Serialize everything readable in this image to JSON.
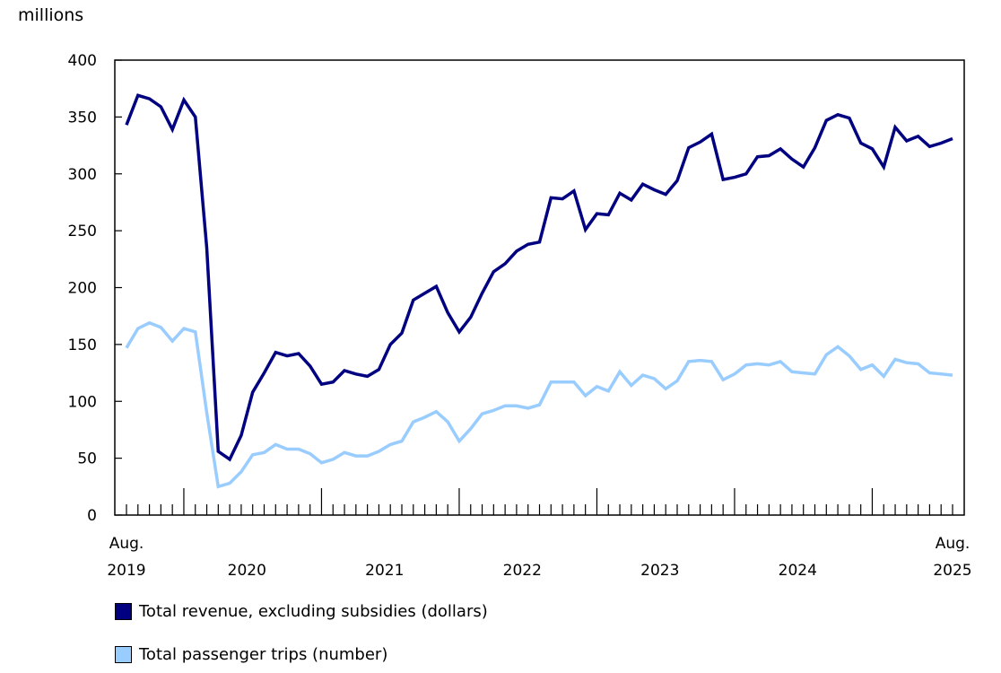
{
  "chart_data": {
    "type": "line",
    "unit_label": "millions",
    "ylim": [
      0,
      400
    ],
    "yticks": [
      0,
      50,
      100,
      150,
      200,
      250,
      300,
      350,
      400
    ],
    "x_start": "2019-08",
    "x_end": "2025-08",
    "x_labels": [
      {
        "top": "Aug.",
        "bottom": "2019",
        "month": "2019-08"
      },
      {
        "top": "",
        "bottom": "2020",
        "month": "2020-07"
      },
      {
        "top": "",
        "bottom": "2021",
        "month": "2021-07"
      },
      {
        "top": "",
        "bottom": "2022",
        "month": "2022-07"
      },
      {
        "top": "",
        "bottom": "2023",
        "month": "2023-07"
      },
      {
        "top": "",
        "bottom": "2024",
        "month": "2024-07"
      },
      {
        "top": "Aug.",
        "bottom": "2025",
        "month": "2025-08"
      }
    ],
    "grid": false,
    "legend_placement": "bottom",
    "series": [
      {
        "name": "Total revenue, excluding subsidies (dollars)",
        "color": "#000080",
        "values": [
          343,
          369,
          366,
          359,
          339,
          365,
          350,
          235,
          56,
          49,
          70,
          108,
          125,
          143,
          140,
          142,
          131,
          115,
          117,
          127,
          124,
          122,
          128,
          150,
          160,
          189,
          195,
          201,
          178,
          161,
          174,
          195,
          214,
          221,
          232,
          238,
          240,
          279,
          278,
          285,
          251,
          265,
          264,
          283,
          277,
          291,
          286,
          282,
          294,
          323,
          328,
          335,
          295,
          297,
          300,
          315,
          316,
          322,
          313,
          306,
          323,
          347,
          352,
          349,
          327,
          322,
          306,
          341,
          329,
          333,
          324,
          327,
          331
        ]
      },
      {
        "name": "Total passenger trips (number)",
        "color": "#99ccff",
        "values": [
          147,
          164,
          169,
          165,
          153,
          164,
          161,
          90,
          25,
          28,
          38,
          53,
          55,
          62,
          58,
          58,
          54,
          46,
          49,
          55,
          52,
          52,
          56,
          62,
          65,
          82,
          86,
          91,
          82,
          65,
          76,
          89,
          92,
          96,
          96,
          94,
          97,
          117,
          117,
          117,
          105,
          113,
          109,
          126,
          114,
          123,
          120,
          111,
          118,
          135,
          136,
          135,
          119,
          124,
          132,
          133,
          132,
          135,
          126,
          125,
          124,
          141,
          148,
          140,
          128,
          132,
          122,
          137,
          134,
          133,
          125,
          124,
          123
        ]
      }
    ]
  }
}
